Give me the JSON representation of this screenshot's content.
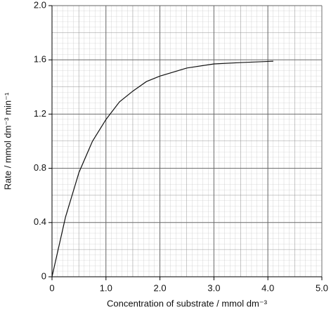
{
  "chart_data": {
    "type": "line",
    "x_label": "Concentration of substrate / mmol dm⁻³",
    "y_label": "Rate / mmol dm⁻³ min⁻¹",
    "x": [
      0,
      0.25,
      0.5,
      0.75,
      1.0,
      1.25,
      1.5,
      1.75,
      2.0,
      2.5,
      3.0,
      3.5,
      4.1
    ],
    "series": [
      {
        "color": "#111111",
        "values": [
          0,
          0.44,
          0.77,
          1.0,
          1.16,
          1.29,
          1.37,
          1.44,
          1.48,
          1.54,
          1.57,
          1.58,
          1.59
        ]
      }
    ],
    "xlim": [
      0,
      5
    ],
    "ylim": [
      0,
      2
    ],
    "xticks": [
      0,
      {
        "value": 1,
        "label": "1.0"
      },
      {
        "value": 2,
        "label": "2.0"
      },
      {
        "value": 3,
        "label": "3.0"
      },
      {
        "value": 4,
        "label": "4.0"
      },
      {
        "value": 5,
        "label": "5.0"
      }
    ],
    "yticks": [
      0,
      0.4,
      0.8,
      1.2,
      1.6,
      {
        "value": 2,
        "label": "2.0"
      }
    ],
    "grid": true
  }
}
